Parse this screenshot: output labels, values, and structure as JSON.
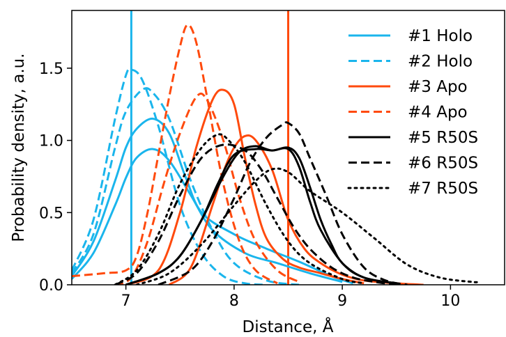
{
  "chart_data": {
    "type": "line",
    "xlabel": "Distance, Å",
    "ylabel": "Probability density, a.u.",
    "xlim": [
      6.5,
      10.5
    ],
    "ylim": [
      0.0,
      1.9
    ],
    "xticks": [
      7,
      8,
      9,
      10
    ],
    "yticks": [
      0.0,
      0.5,
      1.0,
      1.5
    ],
    "xtick_labels": [
      "7",
      "8",
      "9",
      "10"
    ],
    "ytick_labels": [
      "0.0",
      "0.5",
      "1.0",
      "1.5"
    ],
    "grid": false,
    "legend_position": "top-right",
    "reference_lines": [
      {
        "x": 7.05,
        "color": "#1ab5ec"
      },
      {
        "x": 8.5,
        "color": "#ff4a0d"
      }
    ],
    "series": [
      {
        "name": "#1 Holo",
        "color": "#1ab5ec",
        "dash": "solid",
        "components": [
          {
            "x": [
              6.5,
              6.7,
              6.9,
              7.0,
              7.1,
              7.25,
              7.4,
              7.55,
              7.7,
              8.0,
              8.3,
              8.6,
              8.9,
              9.1
            ],
            "y": [
              0.06,
              0.3,
              0.72,
              0.95,
              1.08,
              1.15,
              1.05,
              0.75,
              0.5,
              0.35,
              0.25,
              0.16,
              0.06,
              0.01
            ]
          },
          {
            "x": [
              6.5,
              6.7,
              6.9,
              7.0,
              7.1,
              7.25,
              7.4,
              7.6,
              7.8,
              8.1,
              8.4,
              8.7,
              9.0
            ],
            "y": [
              0.04,
              0.22,
              0.55,
              0.74,
              0.88,
              0.94,
              0.86,
              0.62,
              0.38,
              0.22,
              0.15,
              0.08,
              0.02
            ]
          }
        ]
      },
      {
        "name": "#2 Holo",
        "color": "#1ab5ec",
        "dash": "dashed",
        "components": [
          {
            "x": [
              6.5,
              6.7,
              6.9,
              7.0,
              7.05,
              7.15,
              7.3,
              7.5,
              7.7,
              7.9,
              8.1,
              8.3
            ],
            "y": [
              0.1,
              0.45,
              1.15,
              1.45,
              1.49,
              1.42,
              1.1,
              0.55,
              0.22,
              0.06,
              0.01,
              0.0
            ]
          },
          {
            "x": [
              6.5,
              6.7,
              6.9,
              7.0,
              7.15,
              7.25,
              7.4,
              7.6,
              7.8,
              8.0,
              8.3,
              8.6
            ],
            "y": [
              0.08,
              0.35,
              0.95,
              1.2,
              1.35,
              1.33,
              1.15,
              0.72,
              0.38,
              0.15,
              0.03,
              0.0
            ]
          }
        ]
      },
      {
        "name": "#3 Apo",
        "color": "#ff4a0d",
        "dash": "solid",
        "components": [
          {
            "x": [
              7.0,
              7.3,
              7.5,
              7.65,
              7.8,
              7.9,
              8.0,
              8.1,
              8.2,
              8.3,
              8.45,
              8.6,
              8.8,
              9.0,
              9.2
            ],
            "y": [
              0.0,
              0.1,
              0.5,
              0.95,
              1.28,
              1.35,
              1.25,
              0.88,
              0.55,
              0.32,
              0.18,
              0.12,
              0.08,
              0.04,
              0.01
            ]
          },
          {
            "x": [
              7.4,
              7.6,
              7.8,
              7.9,
              8.0,
              8.1,
              8.2,
              8.35,
              8.5,
              8.65,
              8.8,
              9.0,
              9.2,
              9.5,
              9.75
            ],
            "y": [
              0.0,
              0.12,
              0.55,
              0.78,
              0.95,
              1.03,
              1.0,
              0.8,
              0.45,
              0.25,
              0.15,
              0.07,
              0.03,
              0.01,
              0.0
            ]
          }
        ]
      },
      {
        "name": "#4 Apo",
        "color": "#ff4a0d",
        "dash": "dashed",
        "components": [
          {
            "x": [
              6.5,
              6.8,
              7.0,
              7.1,
              7.2,
              7.3,
              7.4,
              7.5,
              7.57,
              7.65,
              7.75,
              7.9,
              8.05,
              8.2,
              8.4
            ],
            "y": [
              0.06,
              0.08,
              0.1,
              0.2,
              0.5,
              0.9,
              1.3,
              1.65,
              1.8,
              1.68,
              1.3,
              0.7,
              0.3,
              0.1,
              0.01
            ]
          },
          {
            "x": [
              6.9,
              7.05,
              7.2,
              7.35,
              7.5,
              7.65,
              7.75,
              7.9,
              8.05,
              8.2,
              8.4,
              8.6
            ],
            "y": [
              0.0,
              0.05,
              0.3,
              0.7,
              1.05,
              1.3,
              1.28,
              1.0,
              0.6,
              0.3,
              0.1,
              0.02
            ]
          }
        ]
      },
      {
        "name": "#5 R50S",
        "color": "#000000",
        "dash": "solid",
        "components": [
          {
            "x": [
              7.0,
              7.3,
              7.5,
              7.7,
              7.9,
              8.05,
              8.2,
              8.35,
              8.5,
              8.6,
              8.7,
              8.8,
              8.9,
              9.0,
              9.2,
              9.5
            ],
            "y": [
              0.0,
              0.08,
              0.2,
              0.45,
              0.75,
              0.92,
              0.96,
              0.93,
              0.95,
              0.88,
              0.68,
              0.45,
              0.28,
              0.15,
              0.05,
              0.01
            ]
          },
          {
            "x": [
              7.0,
              7.3,
              7.5,
              7.7,
              7.85,
              8.0,
              8.2,
              8.35,
              8.5,
              8.6,
              8.7,
              8.8,
              9.0,
              9.2,
              9.5
            ],
            "y": [
              0.0,
              0.08,
              0.2,
              0.45,
              0.7,
              0.9,
              0.94,
              0.93,
              0.94,
              0.82,
              0.58,
              0.38,
              0.15,
              0.05,
              0.01
            ]
          }
        ]
      },
      {
        "name": "#6 R50S",
        "color": "#000000",
        "dash": "dashed",
        "components": [
          {
            "x": [
              6.9,
              7.1,
              7.3,
              7.5,
              7.7,
              7.9,
              8.1,
              8.25,
              8.4,
              8.55,
              8.7,
              8.9,
              9.1,
              9.3,
              9.5
            ],
            "y": [
              0.0,
              0.08,
              0.3,
              0.62,
              0.88,
              0.97,
              0.93,
              0.8,
              0.6,
              0.4,
              0.25,
              0.12,
              0.05,
              0.02,
              0.0
            ]
          },
          {
            "x": [
              7.3,
              7.6,
              7.8,
              8.0,
              8.15,
              8.3,
              8.45,
              8.5,
              8.6,
              8.7,
              8.85,
              9.0,
              9.2,
              9.4,
              9.6
            ],
            "y": [
              0.0,
              0.1,
              0.3,
              0.6,
              0.85,
              1.02,
              1.11,
              1.12,
              1.05,
              0.88,
              0.62,
              0.35,
              0.12,
              0.03,
              0.0
            ]
          }
        ]
      },
      {
        "name": "#7 R50S",
        "color": "#000000",
        "dash": "dotted",
        "components": [
          {
            "x": [
              6.9,
              7.1,
              7.3,
              7.5,
              7.7,
              7.85,
              7.95,
              8.1,
              8.3,
              8.5,
              8.7,
              9.0,
              9.2
            ],
            "y": [
              0.0,
              0.1,
              0.35,
              0.7,
              0.95,
              1.04,
              1.0,
              0.85,
              0.55,
              0.3,
              0.15,
              0.04,
              0.01
            ]
          },
          {
            "x": [
              7.1,
              7.4,
              7.7,
              8.0,
              8.2,
              8.35,
              8.5,
              8.7,
              9.0,
              9.3,
              9.6,
              9.9,
              10.2,
              10.25
            ],
            "y": [
              0.0,
              0.08,
              0.28,
              0.55,
              0.72,
              0.8,
              0.78,
              0.65,
              0.5,
              0.32,
              0.14,
              0.05,
              0.02,
              0.02
            ]
          }
        ]
      }
    ]
  }
}
